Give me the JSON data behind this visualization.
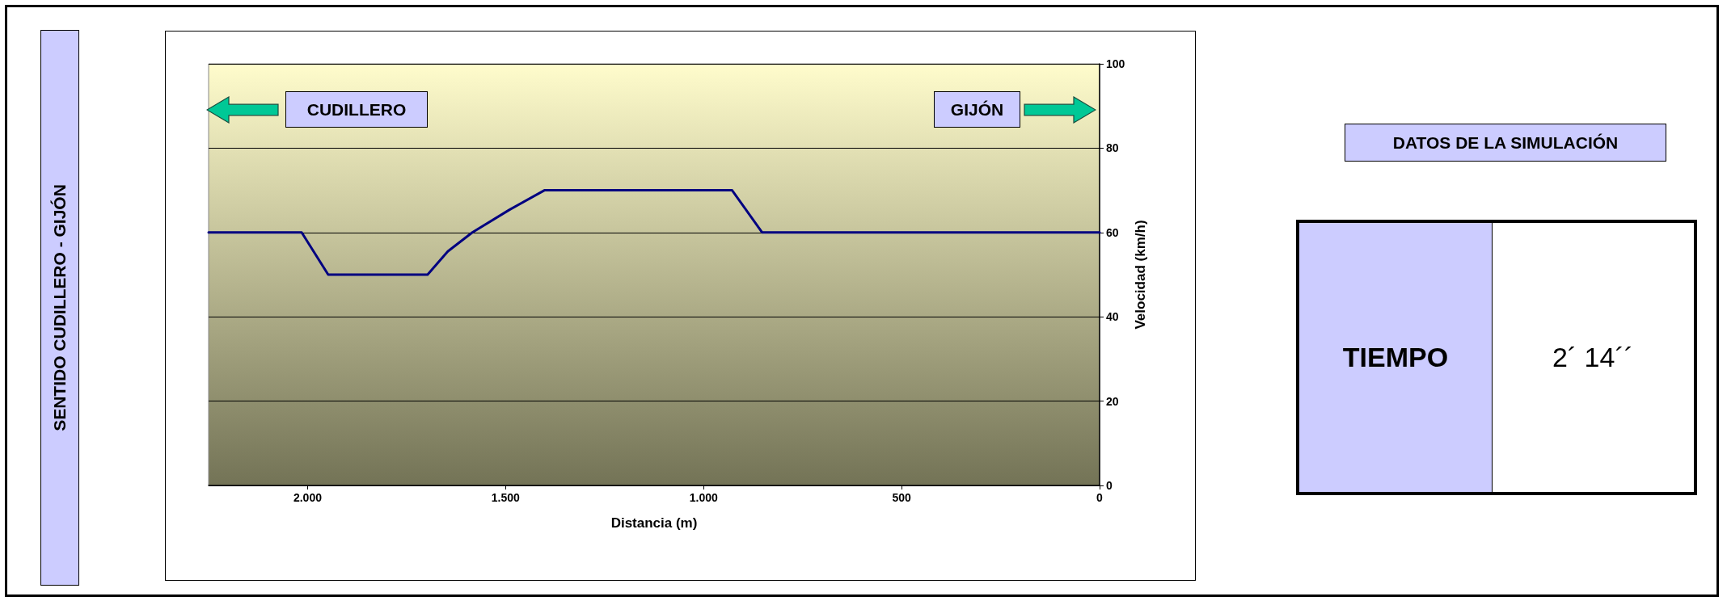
{
  "chart_data": {
    "type": "line",
    "xlabel": "Distancia (m)",
    "ylabel": "Velocidad (km/h)",
    "annotations": [
      "SENTIDO CUDILLERO - GIJÓN",
      "CUDILLERO",
      "GIJÓN",
      "DATOS DE LA SIMULACIÓN",
      "TIEMPO",
      "2´ 14´´"
    ],
    "series": [
      {
        "color": "#000080",
        "x": [
          2250,
          2015,
          1948,
          1697,
          1646,
          1584,
          1490,
          1402,
          928,
          852,
          0
        ],
        "values": [
          60,
          60,
          50,
          50,
          55.5,
          60,
          65.4,
          70,
          70,
          60,
          60
        ]
      }
    ],
    "xlim": [
      2250,
      0
    ],
    "xticks": [
      {
        "value": 2000,
        "label": "2.000"
      },
      {
        "value": 1500,
        "label": "1.500"
      },
      {
        "value": 1000,
        "label": "1.000"
      },
      500,
      0
    ],
    "ylim": [
      0,
      100
    ],
    "yticks": [
      0,
      20,
      40,
      60,
      80,
      100
    ],
    "grid": "y",
    "marker": "none",
    "line_style": "solid"
  }
}
